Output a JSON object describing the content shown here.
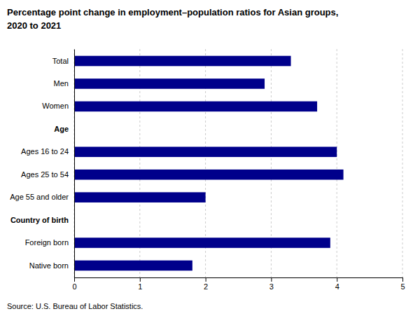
{
  "chart_data": {
    "type": "bar",
    "orientation": "horizontal",
    "title": "Percentage point change in employment–population ratios for Asian groups,",
    "subtitle": "2020 to 2021",
    "categories": [
      "Total",
      "Men",
      "Women",
      "Age",
      "Ages 16 to 24",
      "Ages 25 to 54",
      "Age 55 and older",
      "Country of birth",
      "Foreign born",
      "Native born"
    ],
    "values": [
      3.3,
      2.9,
      3.7,
      null,
      4.0,
      4.1,
      2.0,
      null,
      3.9,
      1.8
    ],
    "color": "#00008B",
    "xlim": [
      0,
      5
    ],
    "xticks": [
      0,
      1,
      2,
      3,
      4,
      5
    ],
    "grid": true,
    "annotations": [
      "Source: U.S. Bureau of Labor Statistics."
    ]
  }
}
